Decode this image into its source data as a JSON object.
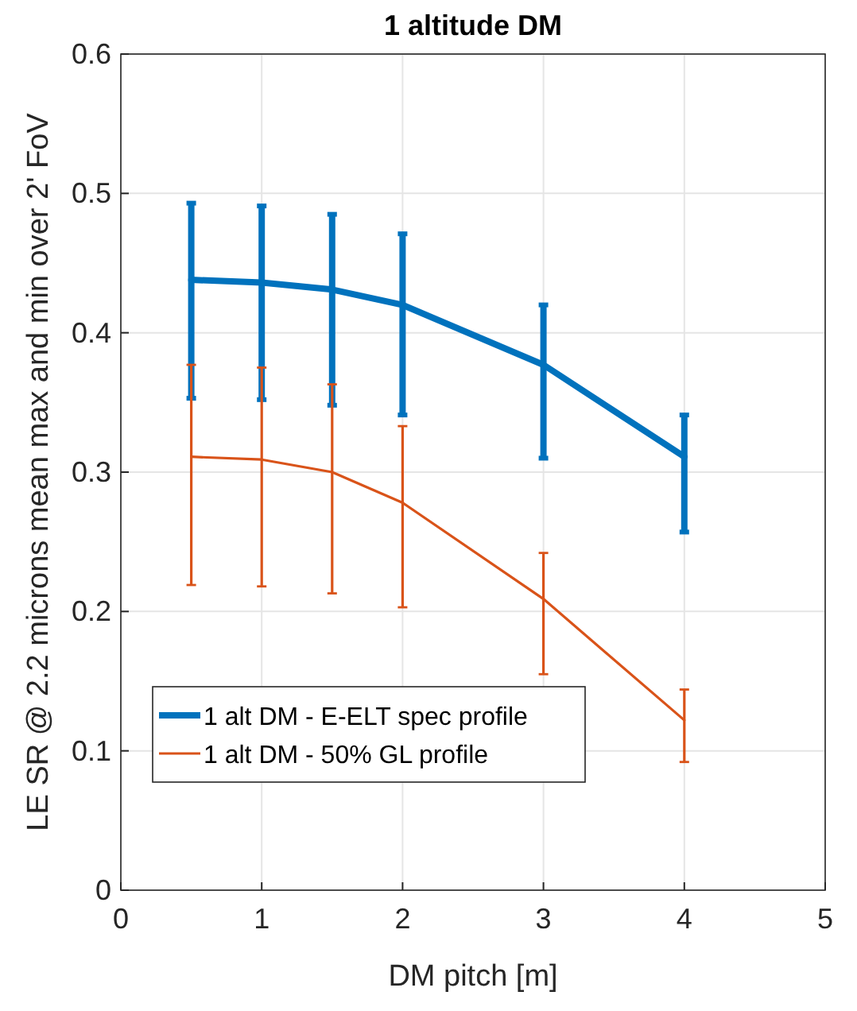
{
  "chart_data": {
    "type": "line",
    "title": "1 altitude DM",
    "xlabel": "DM pitch [m]",
    "ylabel": "LE SR @ 2.2 microns mean max and min over 2' FoV",
    "x": [
      0.5,
      1,
      1.5,
      2,
      3,
      4
    ],
    "series": [
      {
        "name": "1 alt DM - E-ELT spec profile",
        "color": "#0072bd",
        "values": [
          0.438,
          0.436,
          0.431,
          0.42,
          0.377,
          0.311
        ],
        "errors": [
          [
            0.353,
            0.493
          ],
          [
            0.352,
            0.491
          ],
          [
            0.348,
            0.485
          ],
          [
            0.341,
            0.471
          ],
          [
            0.31,
            0.42
          ],
          [
            0.257,
            0.341
          ]
        ]
      },
      {
        "name": "1 alt DM - 50% GL profile",
        "color": "#d95319",
        "values": [
          0.311,
          0.309,
          0.3,
          0.278,
          0.209,
          0.122
        ],
        "errors": [
          [
            0.219,
            0.377
          ],
          [
            0.218,
            0.375
          ],
          [
            0.213,
            0.363
          ],
          [
            0.203,
            0.333
          ],
          [
            0.155,
            0.242
          ],
          [
            0.092,
            0.144
          ]
        ]
      }
    ],
    "xlim": [
      0,
      5
    ],
    "xticks": [
      0,
      1,
      2,
      3,
      4,
      5
    ],
    "ylim": [
      0,
      0.6
    ],
    "yticks": [
      0,
      0.1,
      0.2,
      0.3,
      0.4,
      0.5,
      0.6
    ],
    "grid": true,
    "legend": "bottom left",
    "marker": "none",
    "line_style": "solid"
  }
}
